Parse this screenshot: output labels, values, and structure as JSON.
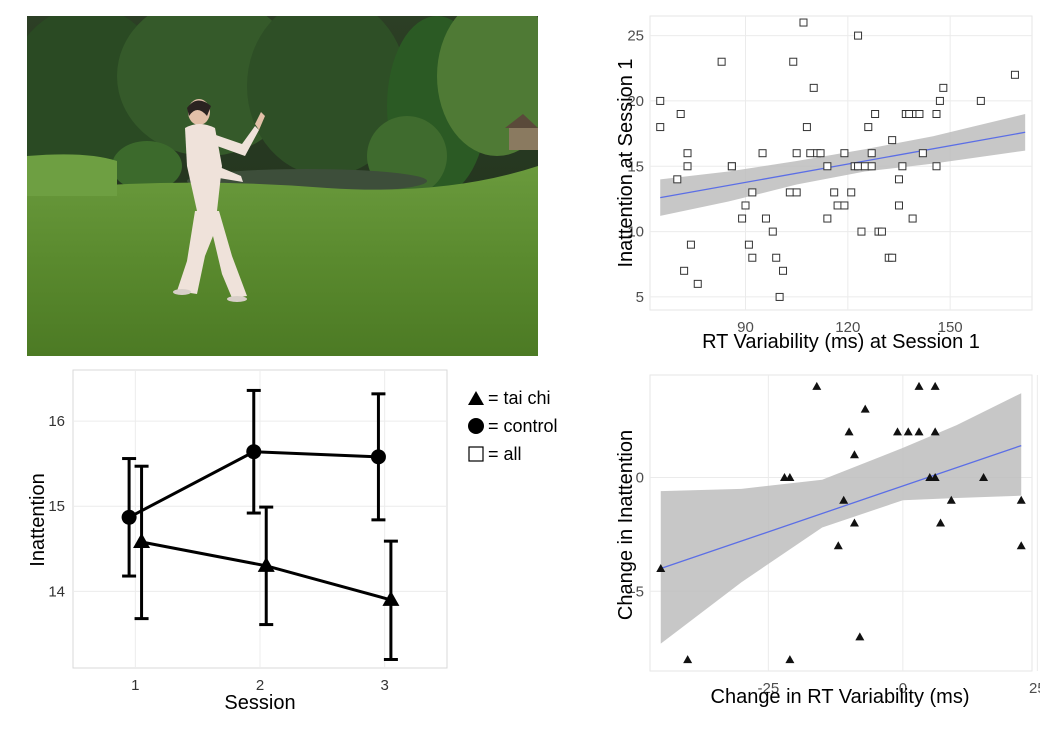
{
  "photo": {
    "description_icon": "tai-chi-photo"
  },
  "legend": [
    {
      "symbol": "triangle",
      "label": "= tai chi"
    },
    {
      "symbol": "circle",
      "label": "= control"
    },
    {
      "symbol": "square",
      "label": "= all"
    }
  ],
  "chart_data": [
    {
      "type": "scatter",
      "xlabel": "RT Variability (ms)  at Session 1",
      "ylabel": "Inattention  at Session 1",
      "xlim": [
        62,
        174
      ],
      "ylim": [
        4,
        26.5
      ],
      "xticks": [
        90,
        120,
        150
      ],
      "yticks": [
        5,
        10,
        15,
        20,
        25
      ],
      "marker": "open-square",
      "points": [
        [
          65,
          20
        ],
        [
          65,
          18
        ],
        [
          70,
          14
        ],
        [
          71,
          19
        ],
        [
          72,
          7
        ],
        [
          73,
          15
        ],
        [
          73,
          16
        ],
        [
          74,
          9
        ],
        [
          76,
          6
        ],
        [
          83,
          23
        ],
        [
          86,
          15
        ],
        [
          86,
          15
        ],
        [
          89,
          11
        ],
        [
          90,
          12
        ],
        [
          91,
          9
        ],
        [
          92,
          8
        ],
        [
          92,
          13
        ],
        [
          95,
          16
        ],
        [
          96,
          11
        ],
        [
          98,
          10
        ],
        [
          99,
          8
        ],
        [
          100,
          5
        ],
        [
          101,
          7
        ],
        [
          103,
          13
        ],
        [
          104,
          23
        ],
        [
          105,
          13
        ],
        [
          105,
          16
        ],
        [
          107,
          26
        ],
        [
          108,
          18
        ],
        [
          109,
          16
        ],
        [
          110,
          21
        ],
        [
          111,
          16
        ],
        [
          112,
          16
        ],
        [
          114,
          11
        ],
        [
          114,
          15
        ],
        [
          116,
          13
        ],
        [
          117,
          12
        ],
        [
          119,
          12
        ],
        [
          119,
          16
        ],
        [
          121,
          13
        ],
        [
          122,
          15
        ],
        [
          123,
          25
        ],
        [
          123,
          15
        ],
        [
          124,
          10
        ],
        [
          125,
          15
        ],
        [
          126,
          18
        ],
        [
          127,
          16
        ],
        [
          127,
          15
        ],
        [
          128,
          19
        ],
        [
          129,
          10
        ],
        [
          130,
          10
        ],
        [
          132,
          8
        ],
        [
          133,
          8
        ],
        [
          133,
          17
        ],
        [
          135,
          12
        ],
        [
          135,
          14
        ],
        [
          136,
          15
        ],
        [
          137,
          19
        ],
        [
          138,
          19
        ],
        [
          139,
          11
        ],
        [
          140,
          19
        ],
        [
          141,
          19
        ],
        [
          142,
          16
        ],
        [
          146,
          15
        ],
        [
          146,
          19
        ],
        [
          147,
          20
        ],
        [
          148,
          21
        ],
        [
          159,
          20
        ],
        [
          169,
          22
        ]
      ],
      "fit": {
        "x": [
          65,
          172
        ],
        "y": [
          12.6,
          17.6
        ]
      },
      "ci_upper": [
        14,
        14.6,
        15.4,
        16.3,
        17.3,
        19.0
      ],
      "ci_lower": [
        11.2,
        12.3,
        13.6,
        14.6,
        15.2,
        16.2
      ],
      "ci_x": [
        65,
        85,
        105,
        125,
        145,
        172
      ],
      "grid": true
    },
    {
      "type": "line",
      "xlabel": "Session",
      "ylabel": "Inattention",
      "xlim": [
        0.5,
        3.5
      ],
      "ylim": [
        13.1,
        16.6
      ],
      "xticks": [
        1,
        2,
        3
      ],
      "yticks": [
        14,
        15,
        16
      ],
      "series": [
        {
          "name": "control",
          "marker": "circle",
          "x": [
            1,
            2,
            3
          ],
          "y": [
            14.87,
            15.64,
            15.58
          ],
          "err_low": [
            14.18,
            14.92,
            14.84
          ],
          "err_high": [
            15.56,
            16.36,
            16.32
          ],
          "offset": -0.05
        },
        {
          "name": "tai chi",
          "marker": "triangle",
          "x": [
            1,
            2,
            3
          ],
          "y": [
            14.58,
            14.3,
            13.9
          ],
          "err_low": [
            13.68,
            13.61,
            13.2
          ],
          "err_high": [
            15.47,
            14.99,
            14.59
          ],
          "offset": 0.05
        }
      ],
      "grid": true
    },
    {
      "type": "scatter",
      "xlabel": "Change in  RT Variability (ms)",
      "ylabel": "Change in  Inattention",
      "xlim": [
        -47,
        24
      ],
      "ylim": [
        -8.5,
        4.5
      ],
      "xticks": [
        -25,
        0,
        25
      ],
      "yticks": [
        -5,
        0
      ],
      "marker": "filled-triangle",
      "points": [
        [
          -45,
          -4
        ],
        [
          -40,
          -8
        ],
        [
          -22,
          0
        ],
        [
          -21,
          0
        ],
        [
          -21,
          -8
        ],
        [
          -16,
          4
        ],
        [
          -12,
          -3
        ],
        [
          -11,
          -1
        ],
        [
          -10,
          2
        ],
        [
          -9,
          -2
        ],
        [
          -9,
          1
        ],
        [
          -8,
          -7
        ],
        [
          -7,
          3
        ],
        [
          -1,
          2
        ],
        [
          1,
          2
        ],
        [
          3,
          4
        ],
        [
          3,
          2
        ],
        [
          5,
          0
        ],
        [
          6,
          4
        ],
        [
          6,
          2
        ],
        [
          7,
          -2
        ],
        [
          6,
          0
        ],
        [
          9,
          -1
        ],
        [
          15,
          0
        ],
        [
          22,
          -1
        ],
        [
          22,
          -3
        ]
      ],
      "fit": {
        "x": [
          -45,
          22
        ],
        "y": [
          -4.0,
          1.4
        ]
      },
      "ci_x": [
        -45,
        -30,
        -15,
        0,
        10,
        22
      ],
      "ci_upper": [
        -0.6,
        -0.5,
        -0.1,
        1.3,
        2.3,
        3.7
      ],
      "ci_lower": [
        -7.3,
        -4.6,
        -2.2,
        -1.0,
        -0.9,
        -0.8
      ],
      "grid": true
    }
  ]
}
